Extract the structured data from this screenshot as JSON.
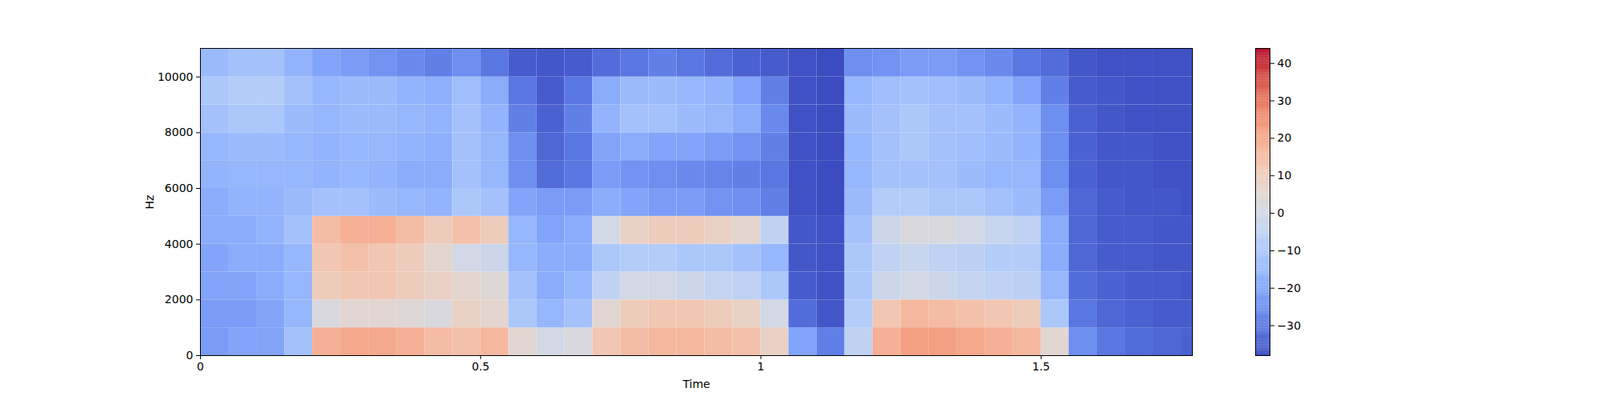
{
  "chart_data": {
    "type": "heatmap",
    "xlabel": "Time",
    "ylabel": "Hz",
    "xlim": [
      0,
      1.77
    ],
    "ylim": [
      0,
      11025
    ],
    "xticks": [
      0,
      0.5,
      1,
      1.5
    ],
    "yticks": [
      0,
      2000,
      4000,
      6000,
      8000,
      10000
    ],
    "x_edges": [
      0,
      0.05,
      0.1,
      0.15,
      0.2,
      0.25,
      0.3,
      0.35,
      0.4,
      0.45,
      0.5,
      0.55,
      0.6,
      0.65,
      0.7,
      0.75,
      0.8,
      0.85,
      0.9,
      0.95,
      1,
      1.05,
      1.1,
      1.15,
      1.2,
      1.25,
      1.3,
      1.35,
      1.4,
      1.45,
      1.5,
      1.55,
      1.6,
      1.65,
      1.7,
      1.75,
      1.77
    ],
    "y_edges": [
      0,
      1000,
      2000,
      3000,
      4000,
      5000,
      6000,
      7000,
      8000,
      9000,
      10000,
      11000,
      11025
    ],
    "values": [
      [
        -22,
        -20,
        -20,
        -12,
        18,
        20,
        20,
        18,
        15,
        14,
        16,
        5,
        0,
        2,
        12,
        15,
        16,
        16,
        15,
        14,
        8,
        -20,
        -28,
        -5,
        18,
        22,
        22,
        20,
        18,
        16,
        5,
        -25,
        -30,
        -32,
        -33,
        -34
      ],
      [
        -22,
        -22,
        -20,
        -15,
        2,
        5,
        5,
        4,
        2,
        8,
        6,
        -10,
        -15,
        -12,
        5,
        10,
        12,
        12,
        10,
        8,
        0,
        -32,
        -36,
        -8,
        12,
        16,
        15,
        14,
        12,
        10,
        -10,
        -30,
        -33,
        -34,
        -35,
        -35
      ],
      [
        -20,
        -20,
        -18,
        -15,
        10,
        12,
        12,
        10,
        8,
        6,
        4,
        -12,
        -18,
        -15,
        -5,
        0,
        0,
        -2,
        -4,
        -5,
        -10,
        -35,
        -37,
        -10,
        -2,
        0,
        -2,
        -4,
        -5,
        -6,
        -15,
        -32,
        -34,
        -35,
        -35,
        -36
      ],
      [
        -20,
        -18,
        -18,
        -15,
        12,
        14,
        12,
        10,
        6,
        0,
        -2,
        -15,
        -18,
        -18,
        -10,
        -8,
        -8,
        -10,
        -10,
        -12,
        -15,
        -36,
        -37,
        -10,
        -5,
        -3,
        -5,
        -6,
        -8,
        -8,
        -18,
        -33,
        -35,
        -35,
        -36,
        -36
      ],
      [
        -18,
        -18,
        -16,
        -12,
        15,
        18,
        18,
        15,
        10,
        14,
        10,
        -15,
        -20,
        -18,
        0,
        8,
        10,
        10,
        8,
        6,
        -5,
        -36,
        -37,
        -12,
        -2,
        2,
        2,
        0,
        -3,
        -5,
        -18,
        -33,
        -35,
        -35,
        -36,
        -36
      ],
      [
        -18,
        -16,
        -16,
        -14,
        -12,
        -12,
        -14,
        -15,
        -16,
        -10,
        -12,
        -20,
        -22,
        -22,
        -18,
        -20,
        -22,
        -22,
        -24,
        -25,
        -28,
        -37,
        -38,
        -14,
        -8,
        -8,
        -10,
        -10,
        -12,
        -14,
        -22,
        -33,
        -35,
        -36,
        -36,
        -37
      ],
      [
        -16,
        -15,
        -15,
        -15,
        -16,
        -15,
        -16,
        -18,
        -18,
        -12,
        -15,
        -25,
        -32,
        -30,
        -22,
        -24,
        -25,
        -26,
        -27,
        -28,
        -30,
        -37,
        -38,
        -15,
        -12,
        -12,
        -12,
        -14,
        -15,
        -15,
        -25,
        -34,
        -36,
        -36,
        -37,
        -37
      ],
      [
        -15,
        -14,
        -14,
        -15,
        -16,
        -15,
        -15,
        -16,
        -17,
        -12,
        -15,
        -25,
        -33,
        -30,
        -20,
        -18,
        -20,
        -20,
        -22,
        -24,
        -28,
        -37,
        -38,
        -15,
        -12,
        -10,
        -12,
        -13,
        -14,
        -16,
        -25,
        -34,
        -36,
        -36,
        -37,
        -37
      ],
      [
        -12,
        -10,
        -10,
        -14,
        -15,
        -14,
        -14,
        -15,
        -16,
        -12,
        -16,
        -28,
        -34,
        -28,
        -16,
        -12,
        -12,
        -14,
        -15,
        -18,
        -26,
        -37,
        -38,
        -14,
        -12,
        -10,
        -12,
        -12,
        -14,
        -16,
        -25,
        -34,
        -36,
        -37,
        -37,
        -37
      ],
      [
        -10,
        -8,
        -8,
        -12,
        -15,
        -14,
        -14,
        -16,
        -17,
        -13,
        -18,
        -30,
        -35,
        -30,
        -18,
        -14,
        -14,
        -15,
        -16,
        -20,
        -28,
        -37,
        -38,
        -15,
        -13,
        -12,
        -13,
        -14,
        -16,
        -20,
        -28,
        -35,
        -36,
        -37,
        -37,
        -37
      ],
      [
        -14,
        -12,
        -12,
        -16,
        -20,
        -22,
        -24,
        -26,
        -28,
        -25,
        -30,
        -35,
        -36,
        -35,
        -32,
        -30,
        -28,
        -30,
        -32,
        -34,
        -35,
        -37,
        -38,
        -25,
        -24,
        -22,
        -22,
        -24,
        -26,
        -30,
        -32,
        -36,
        -37,
        -37,
        -37,
        -37
      ],
      [
        -37,
        -37,
        -37,
        -37,
        -37,
        -37,
        -37,
        -37,
        -37,
        -37,
        -37,
        -37,
        -37,
        -37,
        -37,
        -37,
        -37,
        -37,
        -37,
        -37,
        -37,
        -37,
        -37,
        -37,
        -37,
        -37,
        -37,
        -37,
        -37,
        -37,
        -37,
        -37,
        -37,
        -37,
        -37,
        -37
      ]
    ],
    "colorbar_lim": [
      -38,
      44
    ],
    "colorbar_ticks": [
      -30,
      -20,
      -10,
      0,
      10,
      20,
      30,
      40
    ]
  }
}
